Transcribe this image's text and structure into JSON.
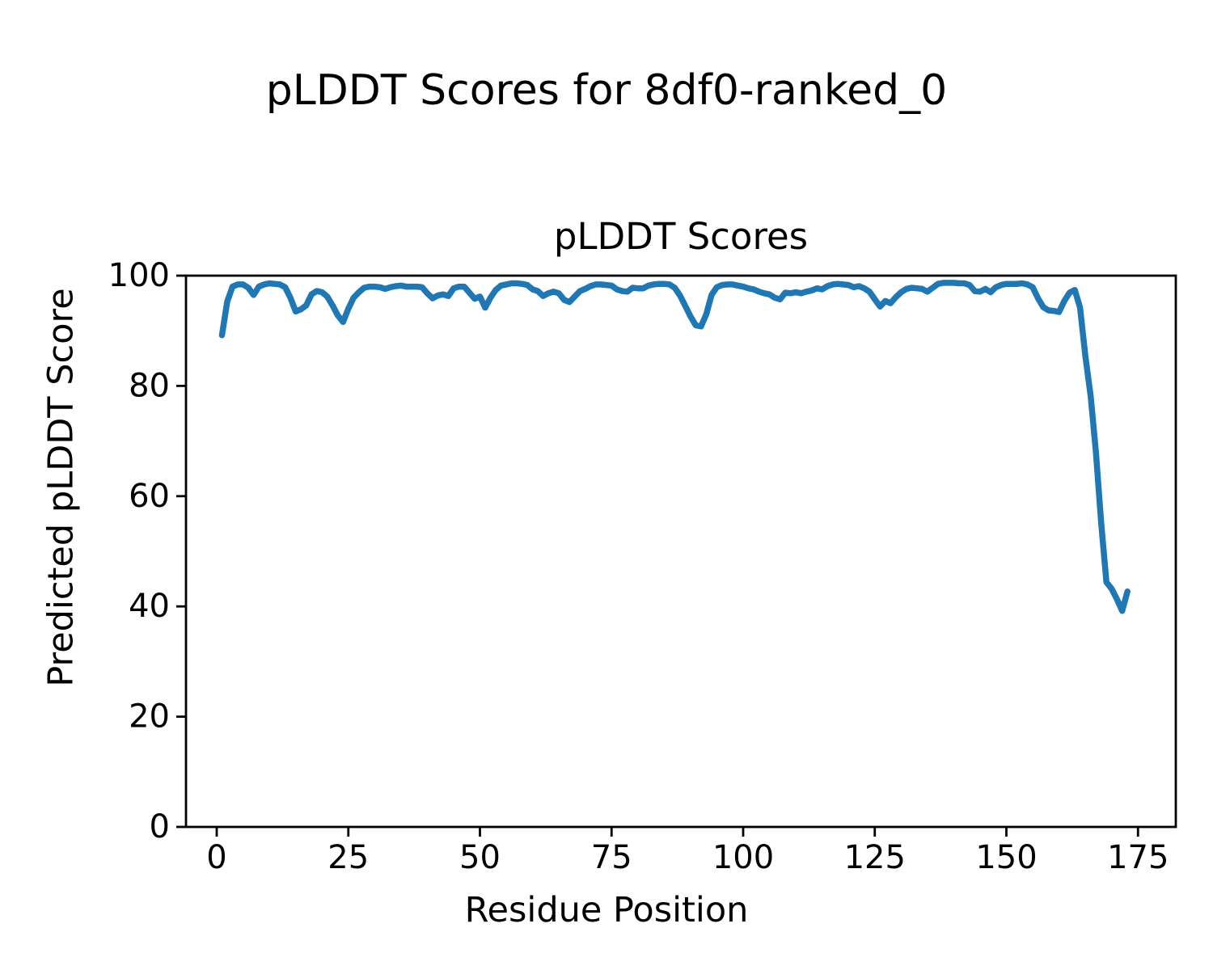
{
  "figure": {
    "suptitle": "pLDDT Scores for 8df0-ranked_0",
    "axes_title": "pLDDT Scores",
    "xlabel": "Residue Position",
    "ylabel": "Predicted pLDDT Score"
  },
  "chart_data": {
    "type": "line",
    "title": "pLDDT Scores",
    "suptitle": "pLDDT Scores for 8df0-ranked_0",
    "xlabel": "Residue Position",
    "ylabel": "Predicted pLDDT Score",
    "xlim": [
      -6,
      182.2
    ],
    "ylim": [
      0,
      100
    ],
    "xticks": [
      0,
      25,
      50,
      75,
      100,
      125,
      150,
      175
    ],
    "yticks": [
      0,
      20,
      40,
      60,
      80,
      100
    ],
    "grid": false,
    "legend": "none",
    "line_color": "#1f77b4",
    "axis_color": "#000000",
    "background_color": "#ffffff",
    "series": [
      {
        "name": "pLDDT",
        "x_start": 1,
        "x_step": 1,
        "values": [
          89.2,
          95.3,
          98.0,
          98.4,
          98.4,
          97.8,
          96.5,
          98.0,
          98.4,
          98.6,
          98.5,
          98.4,
          97.9,
          96.0,
          93.5,
          93.9,
          94.6,
          96.6,
          97.2,
          97.0,
          96.2,
          94.6,
          92.8,
          91.6,
          94.0,
          96.0,
          97.0,
          97.8,
          98.0,
          98.0,
          97.9,
          97.6,
          97.9,
          98.1,
          98.2,
          98.0,
          98.0,
          98.0,
          97.9,
          96.8,
          95.9,
          96.4,
          96.6,
          96.3,
          97.7,
          98.0,
          98.0,
          96.9,
          95.8,
          96.2,
          94.2,
          96.0,
          97.4,
          98.2,
          98.4,
          98.6,
          98.6,
          98.5,
          98.3,
          97.5,
          97.2,
          96.3,
          96.8,
          97.1,
          96.8,
          95.6,
          95.2,
          96.2,
          97.2,
          97.6,
          98.1,
          98.4,
          98.4,
          98.3,
          98.2,
          97.5,
          97.2,
          97.1,
          97.8,
          97.7,
          97.7,
          98.2,
          98.4,
          98.5,
          98.5,
          98.4,
          97.8,
          96.4,
          94.5,
          92.6,
          91.0,
          90.8,
          93.0,
          96.5,
          97.9,
          98.3,
          98.4,
          98.4,
          98.2,
          98.0,
          97.7,
          97.5,
          97.1,
          96.8,
          96.6,
          96.0,
          95.7,
          96.9,
          96.8,
          97.0,
          96.8,
          97.1,
          97.3,
          97.7,
          97.5,
          98.1,
          98.4,
          98.5,
          98.4,
          98.3,
          97.9,
          98.1,
          97.7,
          97.1,
          95.7,
          94.4,
          95.4,
          95.0,
          96.1,
          97.0,
          97.6,
          97.8,
          97.7,
          97.6,
          97.1,
          97.8,
          98.5,
          98.7,
          98.7,
          98.7,
          98.6,
          98.6,
          98.3,
          97.2,
          97.1,
          97.6,
          97.0,
          97.9,
          98.3,
          98.5,
          98.5,
          98.5,
          98.6,
          98.4,
          97.9,
          95.9,
          94.3,
          93.7,
          93.6,
          93.4,
          95.4,
          96.9,
          97.4,
          94.2,
          85.5,
          78.2,
          68.0,
          55.2,
          44.4,
          43.2,
          41.3,
          39.2,
          42.7
        ]
      }
    ]
  }
}
